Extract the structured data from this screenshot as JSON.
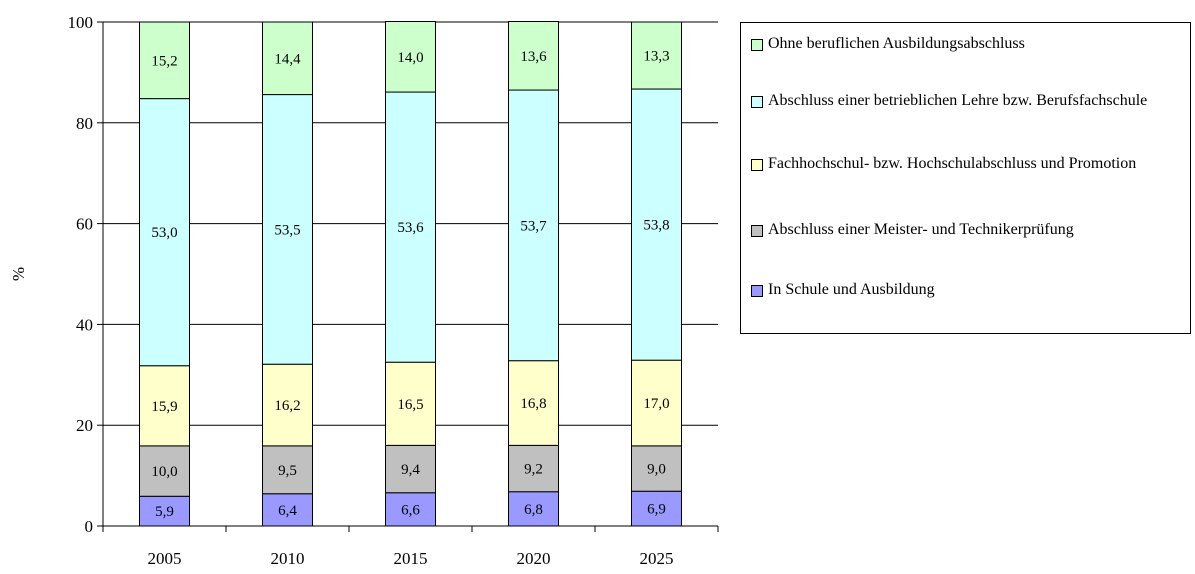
{
  "chart_data": {
    "type": "bar",
    "stacked": true,
    "ylabel": "%",
    "ylim": [
      0,
      100
    ],
    "yticks": [
      0,
      20,
      40,
      60,
      80,
      100
    ],
    "grid": "horizontal",
    "legend_position": "right",
    "categories": [
      "2005",
      "2010",
      "2015",
      "2020",
      "2025"
    ],
    "series": [
      {
        "name": "In Schule und Ausbildung",
        "color": "#9999ff",
        "values": [
          5.9,
          6.4,
          6.6,
          6.8,
          6.9
        ],
        "labels": [
          "5,9",
          "6,4",
          "6,6",
          "6,8",
          "6,9"
        ]
      },
      {
        "name": "Abschluss einer Meister- und Technikerprüfung",
        "color": "#c0c0c0",
        "values": [
          10.0,
          9.5,
          9.4,
          9.2,
          9.0
        ],
        "labels": [
          "10,0",
          "9,5",
          "9,4",
          "9,2",
          "9,0"
        ]
      },
      {
        "name": "Fachhochschul- bzw. Hochschulabschluss und Promotion",
        "color": "#ffffcc",
        "values": [
          15.9,
          16.2,
          16.5,
          16.8,
          17.0
        ],
        "labels": [
          "15,9",
          "16,2",
          "16,5",
          "16,8",
          "17,0"
        ]
      },
      {
        "name": "Abschluss einer betrieblichen Lehre bzw. Berufsfachschule",
        "color": "#ccffff",
        "values": [
          53.0,
          53.5,
          53.6,
          53.7,
          53.8
        ],
        "labels": [
          "53,0",
          "53,5",
          "53,6",
          "53,7",
          "53,8"
        ]
      },
      {
        "name": "Ohne beruflichen Ausbildungsabschluss",
        "color": "#ccffcc",
        "values": [
          15.2,
          14.4,
          14.0,
          13.6,
          13.3
        ],
        "labels": [
          "15,2",
          "14,4",
          "14,0",
          "13,6",
          "13,3"
        ]
      }
    ]
  }
}
